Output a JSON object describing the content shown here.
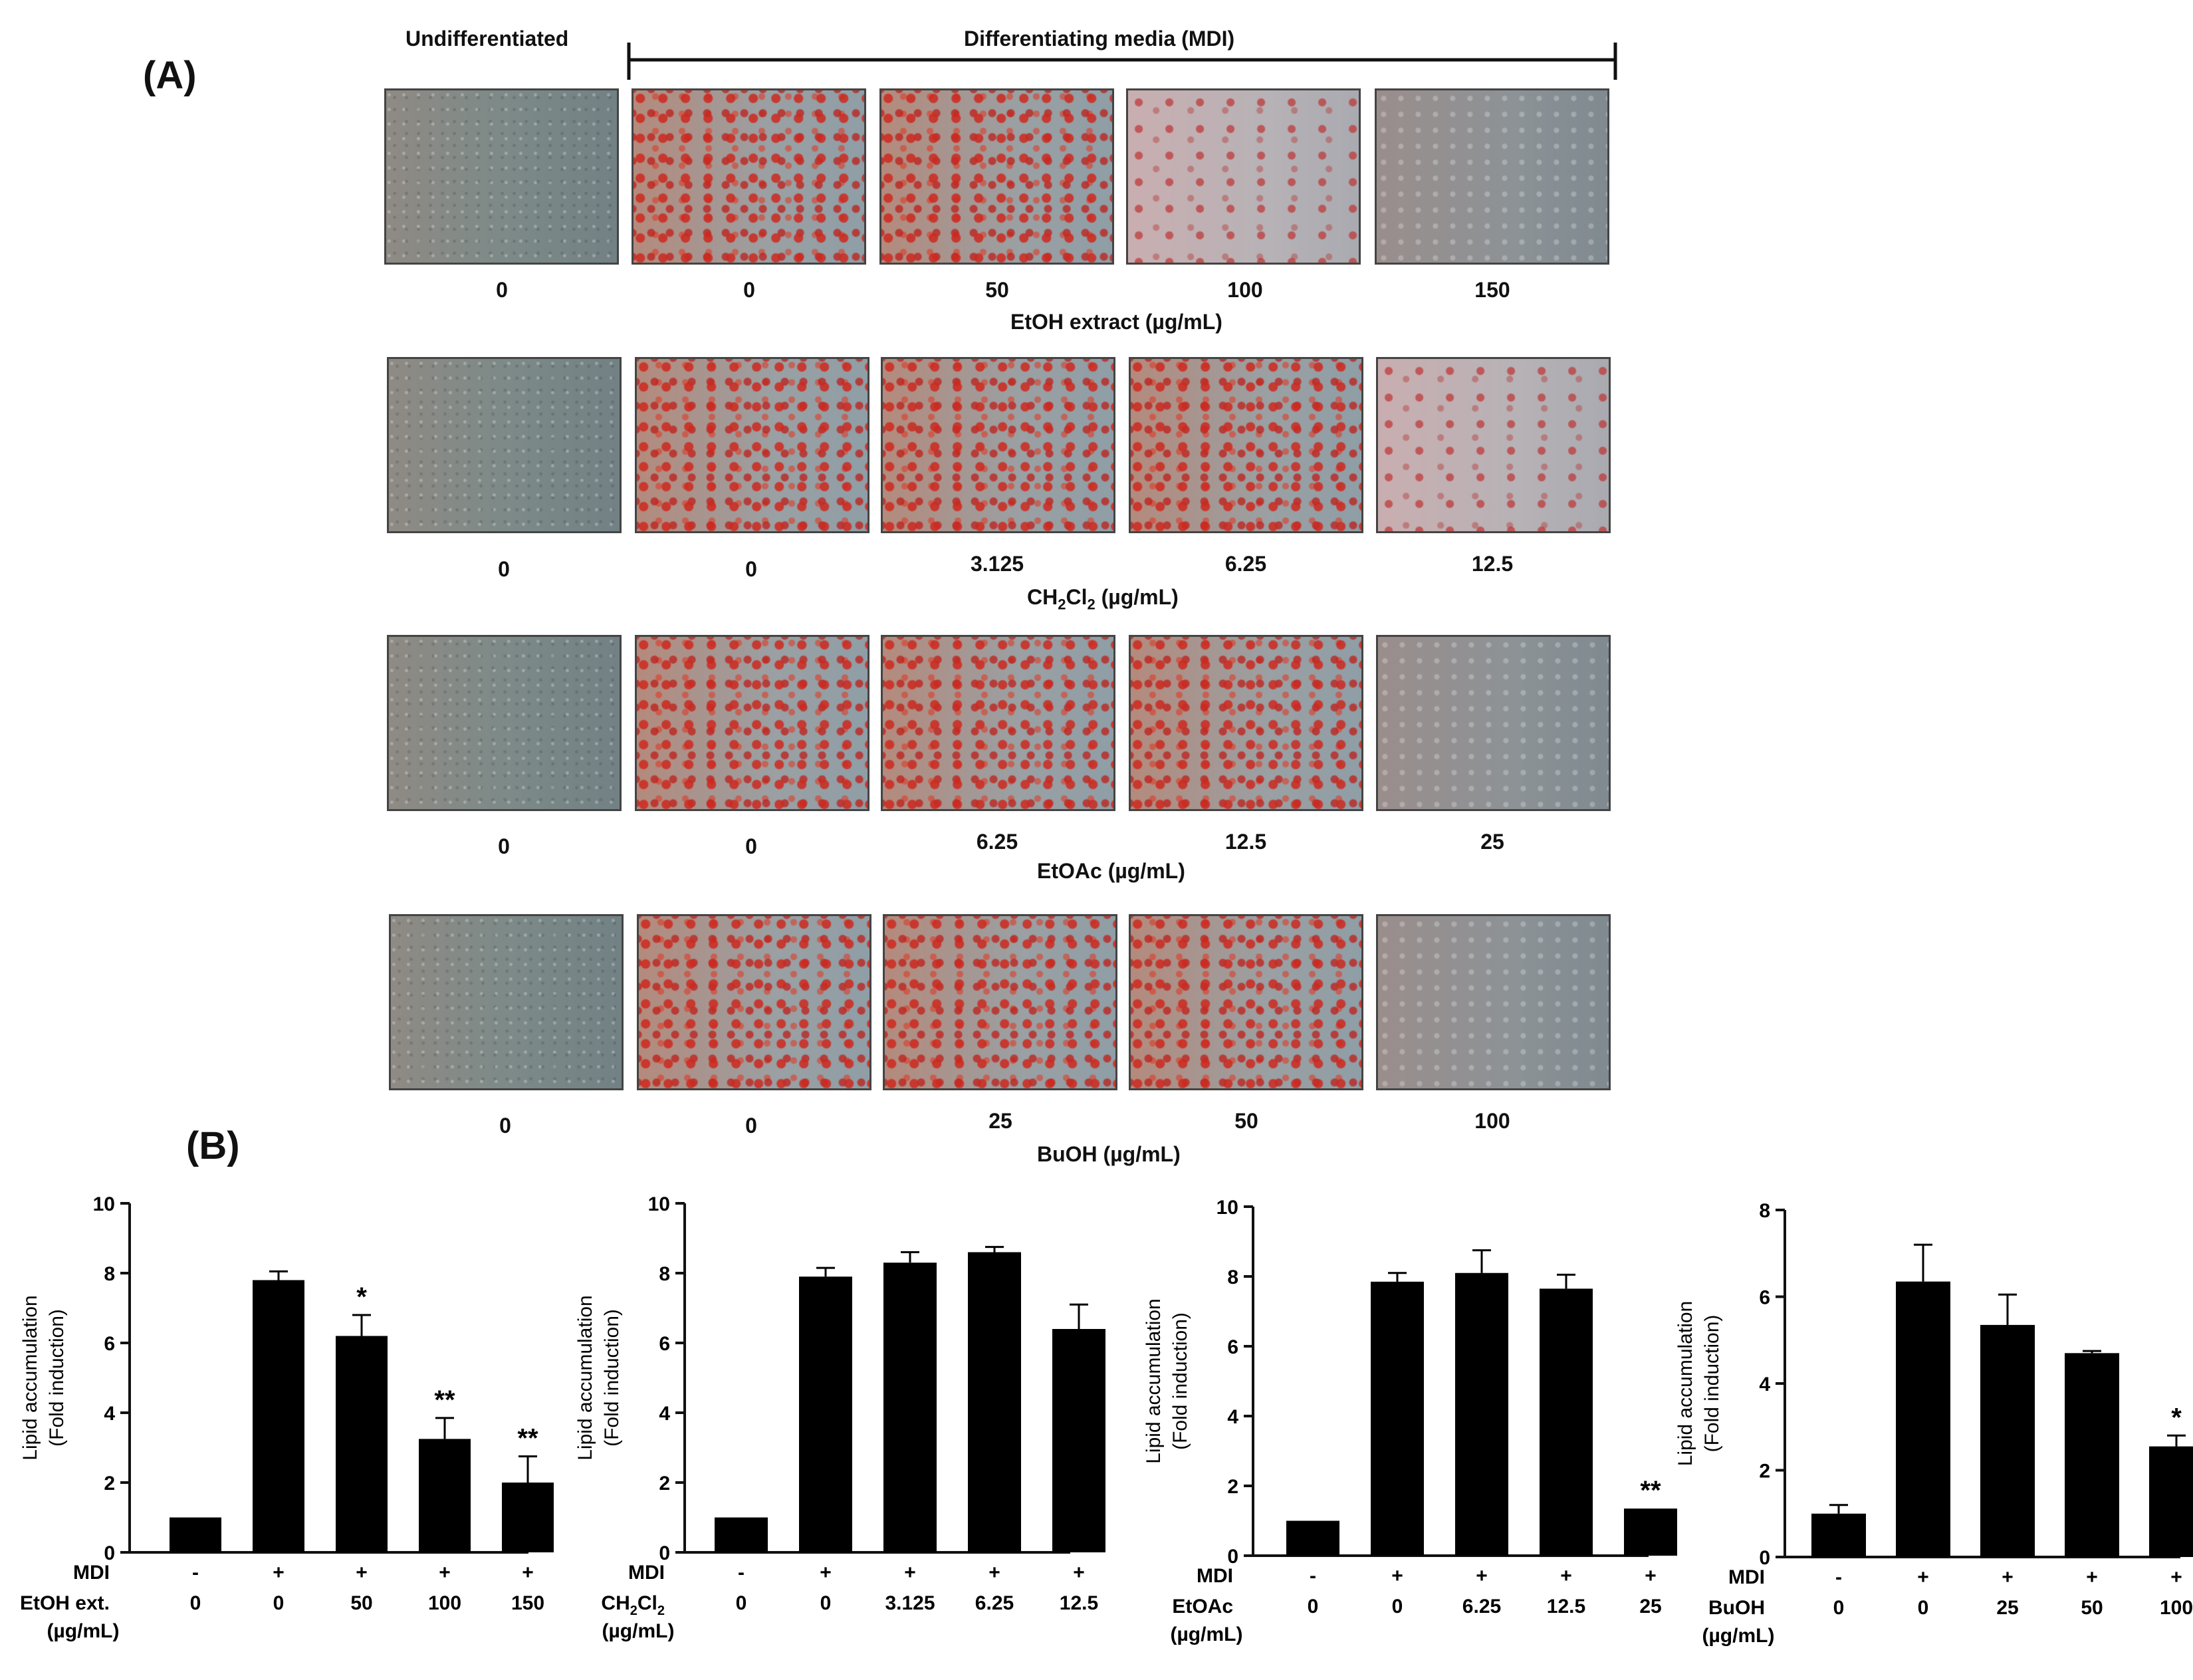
{
  "panel_a": {
    "label": "(A)",
    "undifferentiated_label": "Undifferentiated",
    "mdi_label": "Differentiating media (MDI)",
    "rows": [
      {
        "concentrations": [
          "0",
          "0",
          "50",
          "100",
          "150"
        ],
        "axis_label": "EtOH extract (µg/mL)"
      },
      {
        "concentrations": [
          "0",
          "0",
          "3.125",
          "6.25",
          "12.5"
        ],
        "axis_label_main": "CH",
        "axis_label_sub1": "2",
        "axis_label_mid": "Cl",
        "axis_label_sub2": "2",
        "axis_label_tail": " (µg/mL)"
      },
      {
        "concentrations": [
          "0",
          "0",
          "6.25",
          "12.5",
          "25"
        ],
        "axis_label": "EtOAc (µg/mL)"
      },
      {
        "concentrations": [
          "0",
          "0",
          "25",
          "50",
          "100"
        ],
        "axis_label": "BuOH (µg/mL)"
      }
    ]
  },
  "panel_b": {
    "label": "(B)"
  },
  "chart_data": [
    {
      "type": "bar",
      "ylabel": "Lipid accumulation\n(Fold induction)",
      "ylim": [
        0,
        10
      ],
      "yticks": [
        "0",
        "2",
        "4",
        "6",
        "8",
        "10"
      ],
      "mdi_label": "MDI",
      "mdi": [
        "-",
        "+",
        "+",
        "+",
        "+"
      ],
      "treatment_label": "EtOH ext.",
      "unit_label": "(µg/mL)",
      "categories": [
        "0",
        "0",
        "50",
        "100",
        "150"
      ],
      "values": [
        1.0,
        7.8,
        6.2,
        3.25,
        2.0
      ],
      "errors": [
        0.0,
        0.25,
        0.6,
        0.6,
        0.75
      ],
      "significance": [
        "",
        "",
        "*",
        "**",
        "**"
      ]
    },
    {
      "type": "bar",
      "ylabel": "Lipid accumulation\n(Fold induction)",
      "ylim": [
        0,
        10
      ],
      "yticks": [
        "0",
        "2",
        "4",
        "6",
        "8",
        "10"
      ],
      "mdi_label": "MDI",
      "mdi": [
        "-",
        "+",
        "+",
        "+",
        "+"
      ],
      "treatment_label": "CH2Cl2",
      "unit_label": "(µg/mL)",
      "categories": [
        "0",
        "0",
        "3.125",
        "6.25",
        "12.5"
      ],
      "values": [
        1.0,
        7.9,
        8.3,
        8.6,
        6.4
      ],
      "errors": [
        0.0,
        0.25,
        0.3,
        0.15,
        0.7
      ],
      "significance": [
        "",
        "",
        "",
        "",
        ""
      ]
    },
    {
      "type": "bar",
      "ylabel": "Lipid accumulation\n(Fold induction)",
      "ylim": [
        0,
        10
      ],
      "yticks": [
        "0",
        "2",
        "4",
        "6",
        "8",
        "10"
      ],
      "mdi_label": "MDI",
      "mdi": [
        "-",
        "+",
        "+",
        "+",
        "+"
      ],
      "treatment_label": "EtOAc",
      "unit_label": "(µg/mL)",
      "categories": [
        "0",
        "0",
        "6.25",
        "12.5",
        "25"
      ],
      "values": [
        1.0,
        7.85,
        8.1,
        7.65,
        1.35
      ],
      "errors": [
        0.0,
        0.25,
        0.65,
        0.4,
        0.0
      ],
      "significance": [
        "",
        "",
        "",
        "",
        "**"
      ]
    },
    {
      "type": "bar",
      "ylabel": "Lipid accumulation\n(Fold induction)",
      "ylim": [
        0,
        8
      ],
      "yticks": [
        "0",
        "2",
        "4",
        "6",
        "8"
      ],
      "mdi_label": "MDI",
      "mdi": [
        "-",
        "+",
        "+",
        "+",
        "+"
      ],
      "treatment_label": "BuOH",
      "unit_label": "(µg/mL)",
      "categories": [
        "0",
        "0",
        "25",
        "50",
        "100"
      ],
      "values": [
        1.0,
        6.35,
        5.35,
        4.7,
        2.55
      ],
      "errors": [
        0.2,
        0.85,
        0.7,
        0.05,
        0.25
      ],
      "significance": [
        "",
        "",
        "",
        "",
        "*"
      ]
    }
  ]
}
